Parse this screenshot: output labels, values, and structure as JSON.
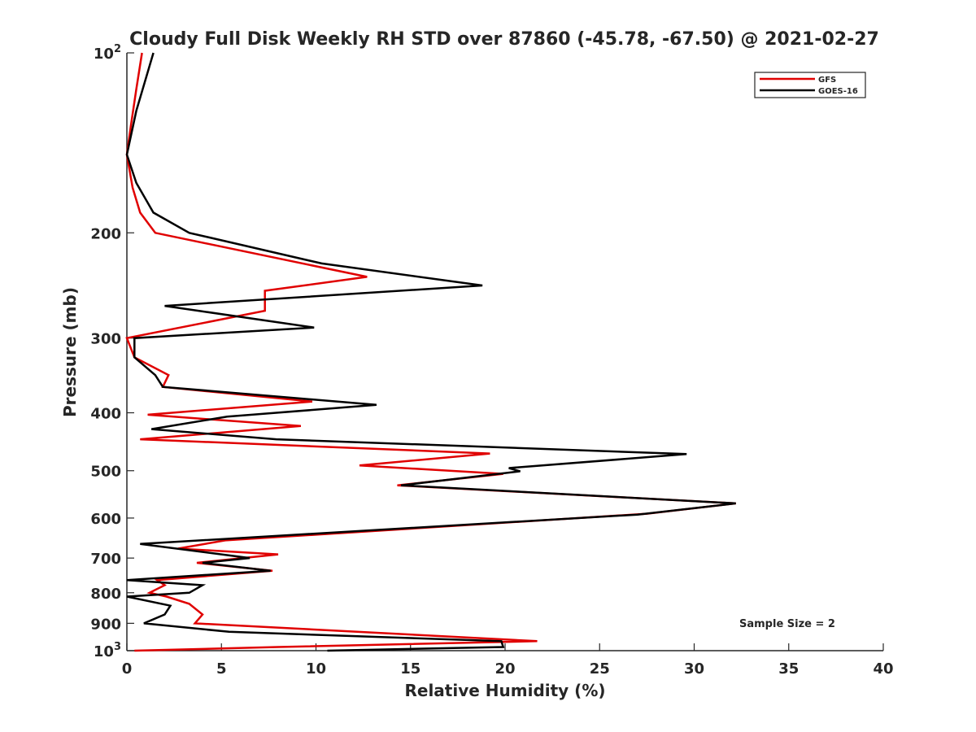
{
  "chart_data": {
    "type": "line",
    "title": "Cloudy Full Disk Weekly RH STD over 87860 (-45.78, -67.50) @ 2021-02-27",
    "xlabel": "Relative Humidity (%)",
    "ylabel": "Pressure (mb)",
    "xlim": [
      0,
      40
    ],
    "ylim": [
      100,
      1000
    ],
    "y_scale": "log",
    "y_reversed": true,
    "grid": false,
    "x_ticks": [
      "0",
      "5",
      "10",
      "15",
      "20",
      "25",
      "30",
      "35",
      "40"
    ],
    "y_ticks": [
      {
        "value": 100,
        "base": "10",
        "exp": "2"
      },
      {
        "value": 200,
        "label": "200"
      },
      {
        "value": 300,
        "label": "300"
      },
      {
        "value": 400,
        "label": "400"
      },
      {
        "value": 500,
        "label": "500"
      },
      {
        "value": 600,
        "label": "600"
      },
      {
        "value": 700,
        "label": "700"
      },
      {
        "value": 800,
        "label": "800"
      },
      {
        "value": 900,
        "label": "900"
      },
      {
        "value": 1000,
        "base": "10",
        "exp": "3"
      }
    ],
    "legend_position": "top-right",
    "annotation": "Sample Size = 2",
    "series": [
      {
        "name": "GFS",
        "color": "#e00000",
        "points": [
          [
            0.8,
            100
          ],
          [
            0.5,
            115
          ],
          [
            0.2,
            133
          ],
          [
            0.0,
            148
          ],
          [
            0.3,
            168
          ],
          [
            0.7,
            185
          ],
          [
            1.5,
            200
          ],
          [
            12.7,
            237
          ],
          [
            7.3,
            250
          ],
          [
            7.3,
            270
          ],
          [
            0.0,
            300
          ],
          [
            0.4,
            323
          ],
          [
            2.2,
            346
          ],
          [
            1.9,
            362
          ],
          [
            9.8,
            383
          ],
          [
            1.1,
            403
          ],
          [
            9.2,
            421
          ],
          [
            0.7,
            443
          ],
          [
            19.2,
            468
          ],
          [
            12.3,
            490
          ],
          [
            19.9,
            506
          ],
          [
            14.3,
            529
          ],
          [
            32.2,
            567
          ],
          [
            27.5,
            590
          ],
          [
            5.2,
            654
          ],
          [
            2.7,
            675
          ],
          [
            8.0,
            690
          ],
          [
            3.7,
            713
          ],
          [
            7.7,
            735
          ],
          [
            1.6,
            762
          ],
          [
            2.0,
            777
          ],
          [
            1.2,
            800
          ],
          [
            2.1,
            812
          ],
          [
            3.3,
            835
          ],
          [
            4.0,
            870
          ],
          [
            3.6,
            900
          ],
          [
            21.7,
            964
          ],
          [
            8.0,
            986
          ],
          [
            0.4,
            1000
          ]
        ]
      },
      {
        "name": "GOES-16",
        "color": "#000000",
        "points": [
          [
            1.4,
            100
          ],
          [
            0.5,
            125
          ],
          [
            0.0,
            148
          ],
          [
            0.5,
            165
          ],
          [
            1.4,
            185
          ],
          [
            3.3,
            200
          ],
          [
            10.3,
            225
          ],
          [
            18.8,
            245
          ],
          [
            2.0,
            265
          ],
          [
            9.9,
            288
          ],
          [
            0.4,
            300
          ],
          [
            0.4,
            323
          ],
          [
            1.5,
            346
          ],
          [
            1.9,
            362
          ],
          [
            13.2,
            388
          ],
          [
            5.3,
            406
          ],
          [
            1.3,
            426
          ],
          [
            7.9,
            443
          ],
          [
            29.6,
            469
          ],
          [
            20.2,
            495
          ],
          [
            20.8,
            501
          ],
          [
            14.5,
            529
          ],
          [
            32.2,
            567
          ],
          [
            27.0,
            592
          ],
          [
            0.7,
            663
          ],
          [
            6.5,
            700
          ],
          [
            4.0,
            713
          ],
          [
            7.6,
            735
          ],
          [
            0.0,
            762
          ],
          [
            4.0,
            777
          ],
          [
            3.3,
            800
          ],
          [
            0.0,
            812
          ],
          [
            2.3,
            841
          ],
          [
            2.0,
            870
          ],
          [
            0.9,
            900
          ],
          [
            5.4,
            930
          ],
          [
            19.8,
            964
          ],
          [
            19.9,
            986
          ],
          [
            10.6,
            1000
          ]
        ]
      }
    ]
  }
}
